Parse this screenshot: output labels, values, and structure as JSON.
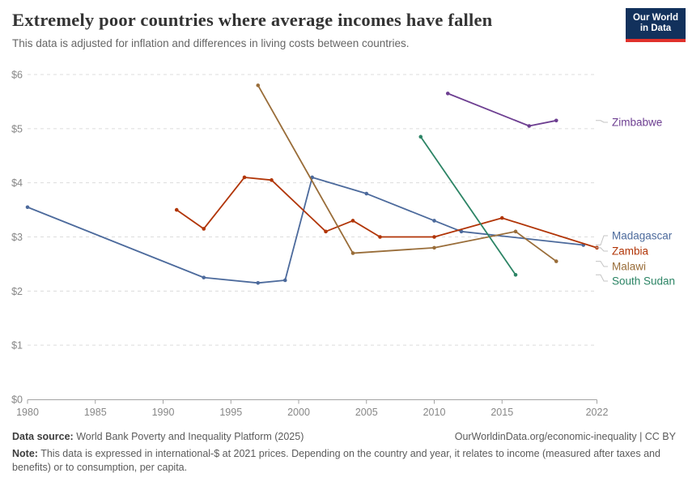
{
  "header": {
    "title": "Extremely poor countries where average incomes have fallen",
    "subtitle": "This data is adjusted for inflation and differences in living costs between countries."
  },
  "logo": {
    "line1": "Our World",
    "line2": "in Data",
    "bg_color": "#12315c",
    "stripe_color": "#e0312b"
  },
  "chart_data": {
    "type": "line",
    "title": "Extremely poor countries where average incomes have fallen",
    "subtitle": "This data is adjusted for inflation and differences in living costs between countries.",
    "xlabel": "",
    "ylabel": "",
    "xlim": [
      1980,
      2022
    ],
    "ylim": [
      0,
      6
    ],
    "grid": "horizontal-dashed",
    "legend_position": "right-edge-labels",
    "x_ticks": [
      1980,
      1985,
      1990,
      1995,
      2000,
      2005,
      2010,
      2015,
      2022
    ],
    "y_ticks": [
      {
        "value": 0,
        "label": "$0"
      },
      {
        "value": 1,
        "label": "$1"
      },
      {
        "value": 2,
        "label": "$2"
      },
      {
        "value": 3,
        "label": "$3"
      },
      {
        "value": 4,
        "label": "$4"
      },
      {
        "value": 5,
        "label": "$5"
      },
      {
        "value": 6,
        "label": "$6"
      }
    ],
    "series": [
      {
        "name": "Madagascar",
        "color": "#4C6A9C",
        "points": [
          [
            1980,
            3.55
          ],
          [
            1993,
            2.25
          ],
          [
            1997,
            2.15
          ],
          [
            1999,
            2.2
          ],
          [
            2001,
            4.1
          ],
          [
            2005,
            3.8
          ],
          [
            2010,
            3.3
          ],
          [
            2012,
            3.1
          ],
          [
            2021,
            2.85
          ]
        ]
      },
      {
        "name": "Zambia",
        "color": "#B13507",
        "points": [
          [
            1991,
            3.5
          ],
          [
            1993,
            3.15
          ],
          [
            1996,
            4.1
          ],
          [
            1998,
            4.05
          ],
          [
            2002,
            3.1
          ],
          [
            2004,
            3.3
          ],
          [
            2006,
            3.0
          ],
          [
            2010,
            3.0
          ],
          [
            2015,
            3.35
          ],
          [
            2022,
            2.8
          ]
        ]
      },
      {
        "name": "Malawi",
        "color": "#996D39",
        "points": [
          [
            1997,
            5.8
          ],
          [
            2004,
            2.7
          ],
          [
            2010,
            2.8
          ],
          [
            2016,
            3.1
          ],
          [
            2019,
            2.55
          ]
        ]
      },
      {
        "name": "South Sudan",
        "color": "#2C8465",
        "points": [
          [
            2009,
            4.85
          ],
          [
            2016,
            2.3
          ]
        ]
      },
      {
        "name": "Zimbabwe",
        "color": "#6D3E91",
        "points": [
          [
            2011,
            5.65
          ],
          [
            2017,
            5.05
          ],
          [
            2019,
            5.15
          ]
        ]
      }
    ]
  },
  "footer": {
    "source_label": "Data source:",
    "source_text": "World Bank Poverty and Inequality Platform (2025)",
    "link_text": "OurWorldinData.org/economic-inequality | CC BY",
    "note_label": "Note:",
    "note_text": "This data is expressed in international-$ at 2021 prices. Depending on the country and year, it relates to income (measured after taxes and benefits) or to consumption, per capita."
  }
}
